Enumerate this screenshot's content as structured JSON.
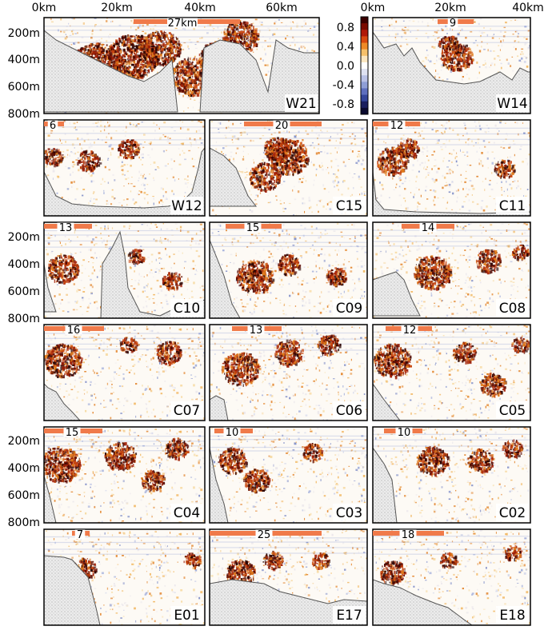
{
  "chart_data": {
    "type": "heatmap",
    "description_axes": {
      "top_x_ticks_left": [
        "0km",
        "20km",
        "40km",
        "60km"
      ],
      "top_x_ticks_right": [
        "0km",
        "20km",
        "40km"
      ],
      "y_ticks": [
        "200m",
        "400m",
        "600m",
        "800m"
      ]
    },
    "colorbar": {
      "ticks": [
        "0.8",
        "0.4",
        "0.0",
        "-0.4",
        "-0.8"
      ],
      "range": [
        -1.0,
        1.0
      ],
      "colors": [
        "#0b0b40",
        "#3a4fa8",
        "#a8b8e8",
        "#ffffff",
        "#f4d08a",
        "#e07a1a",
        "#b01808",
        "#3a0000"
      ]
    },
    "panels": [
      {
        "name": "W21",
        "scale_label": "27km"
      },
      {
        "name": "W14",
        "scale_label": "9"
      },
      {
        "name": "W12",
        "scale_label": "6"
      },
      {
        "name": "C15",
        "scale_label": "20"
      },
      {
        "name": "C11",
        "scale_label": "12"
      },
      {
        "name": "C10",
        "scale_label": "13"
      },
      {
        "name": "C09",
        "scale_label": "15"
      },
      {
        "name": "C08",
        "scale_label": "14"
      },
      {
        "name": "C07",
        "scale_label": "16"
      },
      {
        "name": "C06",
        "scale_label": "13"
      },
      {
        "name": "C05",
        "scale_label": "12"
      },
      {
        "name": "C04",
        "scale_label": "15"
      },
      {
        "name": "C03",
        "scale_label": "10"
      },
      {
        "name": "C02",
        "scale_label": "10"
      },
      {
        "name": "E01",
        "scale_label": "7"
      },
      {
        "name": "E17",
        "scale_label": "25"
      },
      {
        "name": "E18",
        "scale_label": "18"
      }
    ]
  },
  "style": {
    "scale_bar_color": "#f07a4a",
    "seafloor_fill": "#e8e8e8",
    "seafloor_line": "#555555",
    "strong_positive": "#8b1a0a",
    "dark": "#1a0505"
  }
}
